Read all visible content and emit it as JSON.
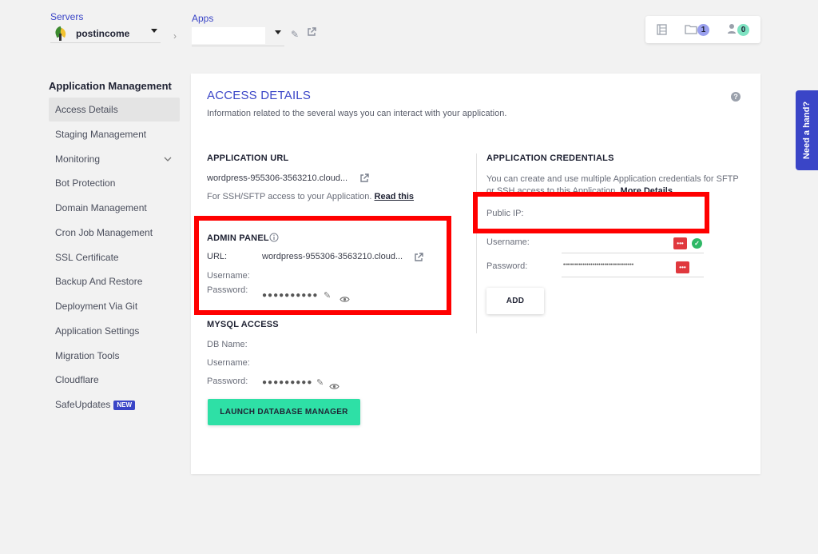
{
  "topbar": {
    "servers_label": "Servers",
    "server_name": "postincome",
    "apps_label": "Apps",
    "app_value": "",
    "folder_count": "1",
    "user_count": "0"
  },
  "sidebar": {
    "title": "Application Management",
    "items": [
      {
        "label": "Access Details",
        "active": true
      },
      {
        "label": "Staging Management"
      },
      {
        "label": "Monitoring",
        "has_chevron": true
      },
      {
        "label": "Bot Protection"
      },
      {
        "label": "Domain Management"
      },
      {
        "label": "Cron Job Management"
      },
      {
        "label": "SSL Certificate"
      },
      {
        "label": "Backup And Restore"
      },
      {
        "label": "Deployment Via Git"
      },
      {
        "label": "Application Settings"
      },
      {
        "label": "Migration Tools"
      },
      {
        "label": "Cloudflare"
      },
      {
        "label": "SafeUpdates",
        "badge": "NEW"
      }
    ]
  },
  "main": {
    "title": "ACCESS DETAILS",
    "description": "Information related to the several ways you can interact with your application.",
    "app_url": {
      "heading": "APPLICATION URL",
      "url": "wordpress-955306-3563210.cloud...",
      "ssh_note": "For SSH/SFTP access to your Application.",
      "read_this": "Read this"
    },
    "admin_panel": {
      "heading": "ADMIN PANEL",
      "url_label": "URL:",
      "url_value": "wordpress-955306-3563210.cloud...",
      "username_label": "Username:",
      "password_label": "Password:",
      "password_mask": "●●●●●●●●●●"
    },
    "mysql": {
      "heading": "MYSQL ACCESS",
      "db_name_label": "DB Name:",
      "username_label": "Username:",
      "password_label": "Password:",
      "password_mask": "●●●●●●●●●",
      "launch_label": "LAUNCH DATABASE MANAGER"
    },
    "credentials": {
      "heading": "APPLICATION CREDENTIALS",
      "desc_line1": "You can create and use multiple Application credentials for SFTP",
      "desc_line2": "or SSH access to this Application.",
      "more_details": "More Details",
      "public_ip_label": "Public IP:",
      "username_label": "Username:",
      "password_label": "Password:",
      "password_mask": "••••••••••••••••••••••••••••••••••••",
      "add_label": "ADD"
    }
  },
  "help": {
    "need_hand": "Need a hand?"
  },
  "colors": {
    "accent": "#3a45c7",
    "launch": "#2ee0a6",
    "highlight": "#ff0000"
  }
}
